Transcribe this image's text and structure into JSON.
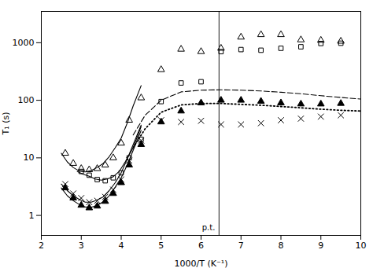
{
  "chart_data": {
    "type": "scatter",
    "xlabel": "1000/T (K⁻¹)",
    "ylabel": "T₁ (s)",
    "log": "y",
    "grid": false,
    "xlim": [
      2,
      10
    ],
    "ylim": [
      0.45,
      3500
    ],
    "xticks": [
      2,
      3,
      4,
      5,
      6,
      7,
      8,
      9,
      10
    ],
    "yticks": [
      1,
      10,
      100,
      1000
    ],
    "series": [
      {
        "type": "scatter",
        "marker": "triangle-open",
        "color": "black",
        "x": [
          2.6,
          2.8,
          3.0,
          3.2,
          3.4,
          3.6,
          3.8,
          4.0,
          4.2,
          4.5,
          5.0,
          5.5,
          6.0,
          6.5,
          7.0,
          7.5,
          8.0,
          8.5,
          9.0,
          9.5
        ],
        "values": [
          12.0,
          8.0,
          6.5,
          6.2,
          6.5,
          7.5,
          10.0,
          18.0,
          45.0,
          110.0,
          340.0,
          770.0,
          700.0,
          800.0,
          1250.0,
          1380.0,
          1380.0,
          1120.0,
          1100.0,
          1060.0
        ]
      },
      {
        "type": "scatter",
        "marker": "square-open",
        "color": "black",
        "x": [
          5.5,
          6.0,
          6.5,
          7.0,
          7.5,
          8.0,
          8.5,
          9.0,
          9.5
        ],
        "values": [
          200.0,
          210.0,
          700.0,
          760.0,
          740.0,
          800.0,
          850.0,
          970.0,
          980.0
        ]
      },
      {
        "type": "scatter",
        "marker": "square-open",
        "color": "black",
        "x": [
          3.0,
          3.2,
          3.4,
          3.6,
          3.8,
          4.0,
          4.2,
          4.5,
          5.0
        ],
        "values": [
          5.8,
          5.0,
          4.2,
          4.0,
          4.5,
          5.5,
          10.0,
          21.0,
          95.0
        ]
      },
      {
        "type": "scatter",
        "marker": "x",
        "color": "black",
        "x": [
          2.6,
          2.8,
          3.0,
          3.2,
          3.4,
          3.6,
          3.8,
          4.0,
          4.2,
          4.5,
          5.0,
          5.5,
          6.0,
          6.5,
          7.0,
          7.5,
          8.0,
          8.5,
          9.0,
          9.5
        ],
        "values": [
          3.5,
          2.4,
          2.0,
          1.7,
          1.8,
          2.1,
          2.8,
          4.2,
          9.0,
          20.0,
          45.0,
          42.0,
          44.0,
          38.0,
          38.0,
          40.0,
          45.0,
          48.0,
          52.0,
          55.0
        ]
      },
      {
        "type": "scatter",
        "marker": "triangle",
        "color": "black",
        "x": [
          2.6,
          2.8,
          3.0,
          3.2,
          3.4,
          3.6,
          3.8,
          4.0,
          4.2,
          4.5,
          5.0,
          5.5,
          6.0,
          6.5,
          7.0,
          7.5,
          8.0,
          8.5,
          9.0,
          9.5
        ],
        "values": [
          3.0,
          2.0,
          1.5,
          1.35,
          1.45,
          1.75,
          2.4,
          3.7,
          7.5,
          17.0,
          42.0,
          65.0,
          90.0,
          100.0,
          100.0,
          96.0,
          90.0,
          86.0,
          86.0,
          88.0
        ]
      },
      {
        "type": "line",
        "line_style": "solid",
        "color": "black",
        "x": [
          2.5,
          2.65,
          2.8,
          2.95,
          3.1,
          3.25,
          3.4,
          3.55,
          3.7,
          3.85,
          4.0,
          4.15,
          4.3,
          4.5
        ],
        "values": [
          12.0,
          8.5,
          6.8,
          5.9,
          5.7,
          6.0,
          6.8,
          8.0,
          10.5,
          15.0,
          22.0,
          40.0,
          80.0,
          180.0
        ]
      },
      {
        "type": "line",
        "line_style": "solid",
        "color": "black",
        "x": [
          2.9,
          3.05,
          3.2,
          3.35,
          3.5,
          3.65,
          3.8,
          3.95,
          4.1,
          4.3,
          4.5
        ],
        "values": [
          5.8,
          5.2,
          4.8,
          4.3,
          4.1,
          4.3,
          4.7,
          5.8,
          8.5,
          15.0,
          35.0
        ]
      },
      {
        "type": "line",
        "line_style": "solid",
        "color": "black",
        "x": [
          2.5,
          2.65,
          2.8,
          2.95,
          3.1,
          3.25,
          3.4,
          3.55,
          3.7,
          3.85,
          4.0,
          4.15,
          4.3,
          4.5
        ],
        "values": [
          3.5,
          2.7,
          2.2,
          1.9,
          1.7,
          1.7,
          1.85,
          2.1,
          2.7,
          3.7,
          5.5,
          9.5,
          17.0,
          37.0
        ]
      },
      {
        "type": "line",
        "line_style": "solid",
        "color": "black",
        "x": [
          2.5,
          2.65,
          2.8,
          2.95,
          3.1,
          3.25,
          3.4,
          3.55,
          3.7,
          3.85,
          4.0,
          4.15,
          4.3,
          4.5
        ],
        "values": [
          3.0,
          2.2,
          1.8,
          1.55,
          1.4,
          1.38,
          1.5,
          1.72,
          2.2,
          3.1,
          4.5,
          7.5,
          13.5,
          30.0
        ]
      },
      {
        "type": "line",
        "line_style": "dashed",
        "color": "black",
        "x": [
          4.3,
          4.6,
          5.0,
          5.5,
          6.0,
          6.5,
          7.0,
          7.5,
          8.0,
          8.5,
          9.0,
          9.5,
          10.0
        ],
        "values": [
          25.0,
          55.0,
          100.0,
          140.0,
          150.0,
          152.0,
          150.0,
          145.0,
          138.0,
          130.0,
          120.0,
          112.0,
          105.0
        ]
      },
      {
        "type": "line",
        "line_style": "dotted",
        "color": "black",
        "x": [
          4.3,
          4.6,
          5.0,
          5.5,
          6.0,
          6.5,
          7.0,
          7.5,
          8.0,
          8.5,
          9.0,
          9.5,
          10.0
        ],
        "values": [
          15.0,
          32.0,
          62.0,
          83.0,
          88.0,
          88.0,
          85.0,
          82.0,
          78.0,
          74.0,
          70.0,
          67.0,
          65.0
        ]
      }
    ],
    "annotations": [
      {
        "type": "vline",
        "x": 6.45,
        "y": 0.55,
        "text": "p.t."
      }
    ]
  }
}
